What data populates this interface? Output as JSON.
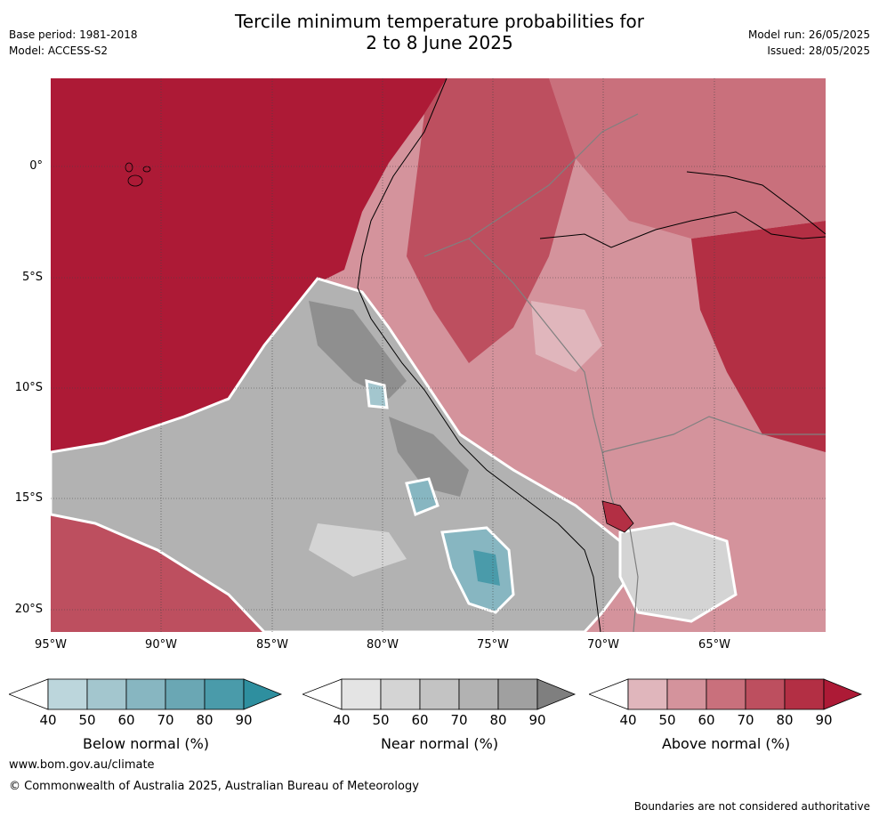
{
  "title_line1": "Tercile minimum temperature probabilities for",
  "title_line2": "2 to 8 June 2025",
  "base_period": "Base period: 1981-2018",
  "model": "Model: ACCESS-S2",
  "model_run": "Model run: 26/05/2025",
  "issued": "Issued: 28/05/2025",
  "map": {
    "lat_labels": [
      "0°",
      "5°S",
      "10°S",
      "15°S",
      "20°S"
    ],
    "lon_labels": [
      "95°W",
      "90°W",
      "85°W",
      "80°W",
      "75°W",
      "70°W",
      "65°W"
    ]
  },
  "colorbars": [
    {
      "label": "Below normal (%)",
      "ticks": [
        "40",
        "50",
        "60",
        "70",
        "80",
        "90"
      ],
      "colors": [
        "#ffffff",
        "#bcd6dc",
        "#a3c6ce",
        "#87b6c1",
        "#6aa7b4",
        "#4a9baa",
        "#2e8f9f"
      ]
    },
    {
      "label": "Near normal (%)",
      "ticks": [
        "40",
        "50",
        "60",
        "70",
        "80",
        "90"
      ],
      "colors": [
        "#ffffff",
        "#e4e4e4",
        "#d4d4d4",
        "#c3c3c3",
        "#b2b2b2",
        "#a0a0a0",
        "#7f7f7f"
      ]
    },
    {
      "label": "Above normal (%)",
      "ticks": [
        "40",
        "50",
        "60",
        "70",
        "80",
        "90"
      ],
      "colors": [
        "#ffffff",
        "#e0b6bc",
        "#d4939c",
        "#c9707c",
        "#bd4f5f",
        "#b32f44",
        "#ad1a36"
      ]
    }
  ],
  "footer": {
    "url": "www.bom.gov.au/climate",
    "copyright": "© Commonwealth of Australia 2025, Australian Bureau of Meteorology",
    "boundary_note": "Boundaries are not considered authoritative"
  }
}
